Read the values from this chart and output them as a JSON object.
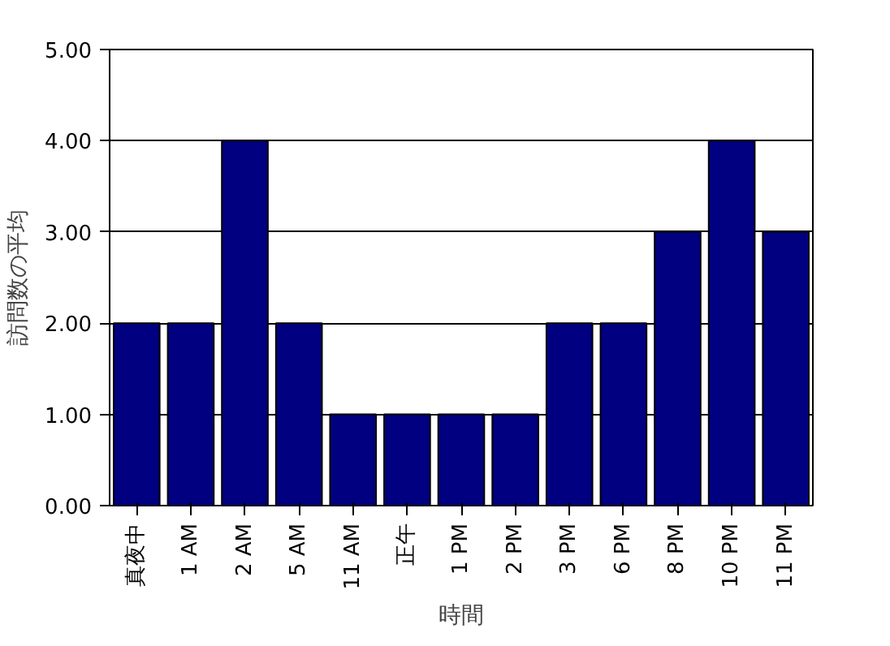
{
  "chart_data": {
    "type": "bar",
    "xlabel": "時間",
    "ylabel": "訪問数の平均",
    "categories": [
      "真夜中",
      "1 AM",
      "2 AM",
      "5 AM",
      "11 AM",
      "正午",
      "1 PM",
      "2 PM",
      "3 PM",
      "6 PM",
      "8 PM",
      "10 PM",
      "11 PM"
    ],
    "values": [
      2,
      2,
      4,
      2,
      1,
      1,
      1,
      1,
      2,
      2,
      3,
      4,
      3
    ],
    "color": "#000080",
    "ylim": [
      0,
      5
    ],
    "yticks": [
      {
        "value": 0,
        "label": "0.00"
      },
      {
        "value": 1,
        "label": "1.00"
      },
      {
        "value": 2,
        "label": "2.00"
      },
      {
        "value": 3,
        "label": "3.00"
      },
      {
        "value": 4,
        "label": "4.00"
      },
      {
        "value": 5,
        "label": "5.00"
      }
    ],
    "grid": "y"
  }
}
